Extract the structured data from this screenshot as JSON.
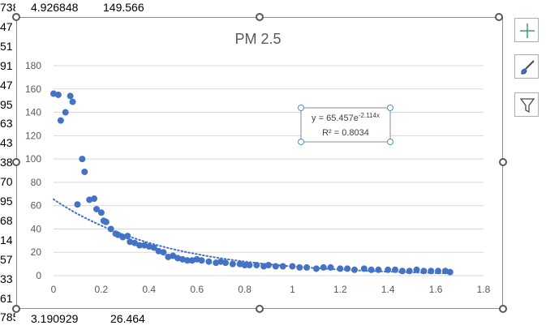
{
  "sheet": {
    "left_partial_rows": [
      "738",
      "47",
      "51",
      "91",
      "47",
      "95",
      "63",
      "43",
      "38",
      "70",
      "95",
      "68",
      "14",
      "57",
      "33",
      "61",
      "785"
    ],
    "top_row": {
      "b": "4.926848",
      "c": "149.566"
    },
    "bottom_row": {
      "b": "3.190929",
      "c": "26.464"
    }
  },
  "side_buttons": [
    {
      "name": "chart-elements-button",
      "icon": "plus-icon"
    },
    {
      "name": "chart-styles-button",
      "icon": "brush-icon"
    },
    {
      "name": "chart-filters-button",
      "icon": "funnel-icon"
    }
  ],
  "colors": {
    "marker": "#4472c4",
    "trend": "#4472c4",
    "grid": "#d9d9d9",
    "handle": "#595959",
    "plus": "#38a169"
  },
  "trendline_label": {
    "equation_prefix": "y = 65.457e",
    "exponent": "-2.114x",
    "r2": "R² = 0.8034"
  },
  "chart_data": {
    "type": "scatter",
    "title": "PM 2.5",
    "xlim": [
      0,
      1.8
    ],
    "ylim": [
      0,
      180
    ],
    "x_ticks": [
      "0",
      "0.2",
      "0.4",
      "0.6",
      "0.8",
      "1",
      "1.2",
      "1.4",
      "1.6",
      "1.8"
    ],
    "y_ticks": [
      "0",
      "20",
      "40",
      "60",
      "80",
      "100",
      "120",
      "140",
      "160",
      "180"
    ],
    "grid": "horizontal",
    "trendline": {
      "type": "exponential",
      "a": 65.457,
      "b": -2.114,
      "style": "dotted",
      "x_range": [
        0,
        1.66
      ]
    },
    "points": [
      [
        0,
        156
      ],
      [
        0.02,
        155
      ],
      [
        0.03,
        133
      ],
      [
        0.05,
        140
      ],
      [
        0.07,
        154
      ],
      [
        0.08,
        149
      ],
      [
        0.1,
        61
      ],
      [
        0.12,
        100
      ],
      [
        0.13,
        89
      ],
      [
        0.15,
        65
      ],
      [
        0.17,
        66
      ],
      [
        0.18,
        57
      ],
      [
        0.2,
        54
      ],
      [
        0.21,
        47
      ],
      [
        0.22,
        46
      ],
      [
        0.24,
        40
      ],
      [
        0.26,
        36
      ],
      [
        0.27,
        35
      ],
      [
        0.29,
        33
      ],
      [
        0.31,
        34
      ],
      [
        0.32,
        29
      ],
      [
        0.34,
        28
      ],
      [
        0.36,
        26
      ],
      [
        0.38,
        26
      ],
      [
        0.4,
        25
      ],
      [
        0.42,
        24
      ],
      [
        0.44,
        21
      ],
      [
        0.46,
        20
      ],
      [
        0.48,
        16
      ],
      [
        0.5,
        17
      ],
      [
        0.52,
        15
      ],
      [
        0.54,
        14
      ],
      [
        0.56,
        13
      ],
      [
        0.58,
        13
      ],
      [
        0.6,
        14
      ],
      [
        0.62,
        13
      ],
      [
        0.65,
        12
      ],
      [
        0.68,
        11
      ],
      [
        0.7,
        12
      ],
      [
        0.72,
        11
      ],
      [
        0.75,
        10
      ],
      [
        0.78,
        10
      ],
      [
        0.8,
        9
      ],
      [
        0.82,
        9
      ],
      [
        0.85,
        9
      ],
      [
        0.88,
        8
      ],
      [
        0.9,
        9
      ],
      [
        0.93,
        8
      ],
      [
        0.96,
        8
      ],
      [
        1.0,
        8
      ],
      [
        1.03,
        7
      ],
      [
        1.06,
        7
      ],
      [
        1.1,
        6
      ],
      [
        1.13,
        7
      ],
      [
        1.16,
        7
      ],
      [
        1.2,
        6
      ],
      [
        1.23,
        6
      ],
      [
        1.26,
        5
      ],
      [
        1.3,
        6
      ],
      [
        1.33,
        5
      ],
      [
        1.36,
        5
      ],
      [
        1.4,
        5
      ],
      [
        1.43,
        5
      ],
      [
        1.46,
        4
      ],
      [
        1.49,
        4
      ],
      [
        1.52,
        5
      ],
      [
        1.55,
        4
      ],
      [
        1.58,
        4
      ],
      [
        1.61,
        4
      ],
      [
        1.64,
        4
      ],
      [
        1.66,
        3
      ]
    ]
  }
}
